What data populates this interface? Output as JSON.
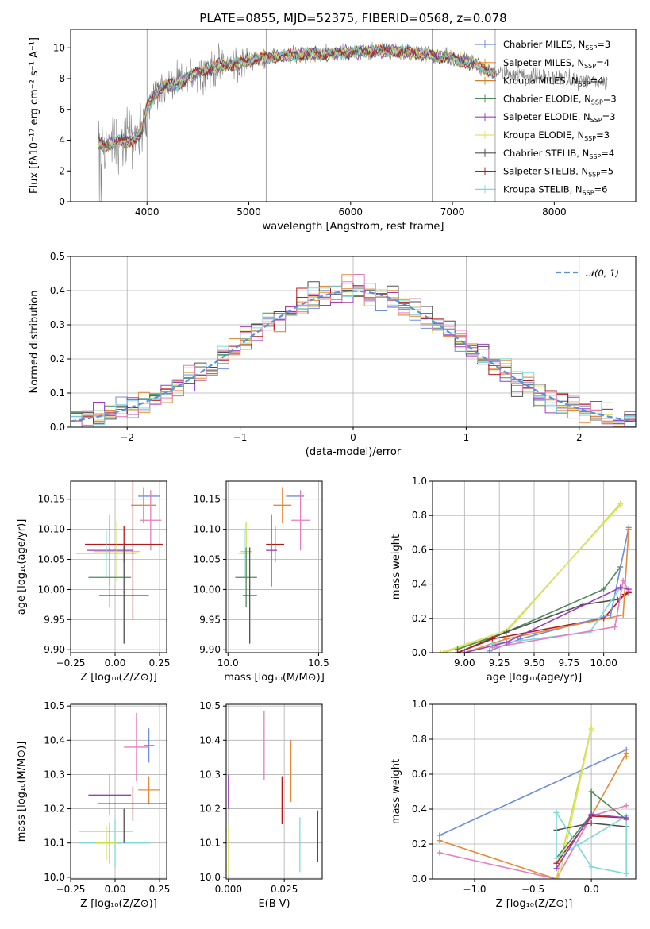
{
  "title": "PLATE=0855, MJD=52375, FIBERID=0568, z=0.078",
  "colors": {
    "Chabrier MILES": "#6f8fdc",
    "Salpeter MILES": "#e48b3a",
    "Kroupa MILES": "#d2822f",
    "Chabrier ELODIE": "#4f8a5c",
    "Salpeter ELODIE": "#9a3fbf",
    "Kroupa ELODIE": "#e0e070",
    "Chabrier STELIB": "#505050",
    "Salpeter STELIB": "#b01c1c",
    "Kroupa STELIB": "#7fd8d8",
    "pink": "#e37fbf",
    "lime": "#c8e040",
    "data": "#808080",
    "normal": "#5b8fd6"
  },
  "chart_data": [
    {
      "id": "spectrum",
      "type": "line",
      "title": "PLATE=0855, MJD=52375, FIBERID=0568, z=0.078",
      "xlabel": "wavelength [Angstrom, rest frame]",
      "ylabel": "Flux [fλ10⁻¹⁷ erg cm⁻² s⁻¹ A⁻¹]",
      "xlim": [
        3250,
        8800
      ],
      "ylim": [
        0,
        11.2
      ],
      "xticks": [
        4000,
        5000,
        6000,
        7000,
        8000
      ],
      "yticks": [
        0,
        2,
        4,
        6,
        8,
        10
      ],
      "legend_position": "top-right",
      "continuum": {
        "x": [
          3520,
          3600,
          3700,
          3800,
          3900,
          3950,
          4000,
          4100,
          4200,
          4300,
          4400,
          4500,
          4600,
          4700,
          4800,
          4900,
          5000,
          5200,
          5400,
          5600,
          5800,
          6000,
          6200,
          6400,
          6600,
          6800,
          7000,
          7200,
          7400
        ],
        "y": [
          3.8,
          3.6,
          4.0,
          3.9,
          4.2,
          4.5,
          6.2,
          7.2,
          7.6,
          7.6,
          8.1,
          8.4,
          8.6,
          8.8,
          8.9,
          9.0,
          9.2,
          9.4,
          9.5,
          9.6,
          9.6,
          9.7,
          9.8,
          9.8,
          9.7,
          9.5,
          9.3,
          9.0,
          8.4
        ]
      },
      "model_end": 7420,
      "data_end": 8520,
      "legend": [
        {
          "name": "Chabrier MILES",
          "sub": "SSP",
          "n": "3",
          "color": "#6f8fdc"
        },
        {
          "name": "Salpeter MILES",
          "sub": "SSP",
          "n": "4",
          "color": "#e48b3a"
        },
        {
          "name": "Kroupa MILES",
          "sub": "SSP",
          "n": "4",
          "color": "#d2822f"
        },
        {
          "name": "Chabrier ELODIE",
          "sub": "SSP",
          "n": "3",
          "color": "#4f8a5c"
        },
        {
          "name": "Salpeter ELODIE",
          "sub": "SSP",
          "n": "3",
          "color": "#9a3fbf"
        },
        {
          "name": "Kroupa ELODIE",
          "sub": "SSP",
          "n": "3",
          "color": "#e0e070"
        },
        {
          "name": "Chabrier STELIB",
          "sub": "SSP",
          "n": "4",
          "color": "#505050"
        },
        {
          "name": "Salpeter STELIB",
          "sub": "SSP",
          "n": "5",
          "color": "#b01c1c"
        },
        {
          "name": "Kroupa STELIB",
          "sub": "SSP",
          "n": "6",
          "color": "#7fd8d8"
        }
      ]
    },
    {
      "id": "residuals",
      "type": "line",
      "xlabel": "(data-model)/error",
      "ylabel": "Normed distribution",
      "xlim": [
        -2.5,
        2.5
      ],
      "ylim": [
        0,
        0.5
      ],
      "xticks": [
        -2,
        -1,
        0,
        1,
        2
      ],
      "yticks": [
        0.0,
        0.1,
        0.2,
        0.3,
        0.4,
        0.5
      ],
      "bin_width": 0.1,
      "legend": [
        {
          "name": "𝒩(0, 1)",
          "style": "dashed",
          "color": "#5b8fd6"
        }
      ],
      "legend_position": "top-right",
      "grid": true
    },
    {
      "id": "age-vs-z",
      "type": "scatter",
      "xlabel": "Z [log₁₀(Z/Z⊙)]",
      "ylabel": "age [log₁₀(age/yr)]",
      "xlim": [
        -0.25,
        0.29
      ],
      "ylim": [
        9.895,
        10.18
      ],
      "xticks": [
        -0.25,
        0.0,
        0.25
      ],
      "yticks": [
        9.9,
        9.95,
        10.0,
        10.05,
        10.1,
        10.15
      ],
      "grid": true,
      "points": [
        {
          "x": 0.19,
          "y": 10.155,
          "xerr": 0.06,
          "yerr": 0.0,
          "color": "#6f8fdc"
        },
        {
          "x": 0.16,
          "y": 10.14,
          "xerr": 0.07,
          "yerr": 0.03,
          "color": "#e48b3a"
        },
        {
          "x": 0.2,
          "y": 10.115,
          "xerr": 0.06,
          "yerr": 0.05,
          "color": "#e37fbf"
        },
        {
          "x": 0.05,
          "y": 10.075,
          "xerr": 0.22,
          "yerr": 0.03,
          "color": "#b01c1c"
        },
        {
          "x": -0.03,
          "y": 10.065,
          "xerr": 0.13,
          "yerr": 0.06,
          "color": "#9a3fbf"
        },
        {
          "x": 0.01,
          "y": 10.063,
          "xerr": 0.13,
          "yerr": 0.05,
          "color": "#c8e040"
        },
        {
          "x": -0.05,
          "y": 10.06,
          "xerr": 0.17,
          "yerr": 0.04,
          "color": "#7fd8d8"
        },
        {
          "x": -0.03,
          "y": 10.02,
          "xerr": 0.12,
          "yerr": 0.05,
          "color": "#4f8a5c"
        },
        {
          "x": 0.05,
          "y": 9.99,
          "xerr": 0.14,
          "yerr": 0.08,
          "color": "#505050"
        },
        {
          "x": 0.1,
          "y": 10.07,
          "xerr": 0.0,
          "yerr": 0.12,
          "color": "#b01c1c"
        }
      ]
    },
    {
      "id": "age-vs-mass",
      "type": "scatter",
      "xlabel": "mass [log₁₀(M/M⊙)]",
      "ylabel": "",
      "xlim": [
        9.99,
        10.52
      ],
      "ylim": [
        9.895,
        10.18
      ],
      "xticks": [
        10.0,
        10.5
      ],
      "yticks": [
        9.9,
        9.95,
        10.0,
        10.05,
        10.1,
        10.15
      ],
      "grid": true,
      "points": [
        {
          "x": 10.37,
          "y": 10.155,
          "xerr": 0.05,
          "yerr": 0.0,
          "color": "#6f8fdc"
        },
        {
          "x": 10.3,
          "y": 10.14,
          "xerr": 0.05,
          "yerr": 0.03,
          "color": "#e48b3a"
        },
        {
          "x": 10.4,
          "y": 10.115,
          "xerr": 0.05,
          "yerr": 0.05,
          "color": "#e37fbf"
        },
        {
          "x": 10.26,
          "y": 10.075,
          "xerr": 0.05,
          "yerr": 0.03,
          "color": "#b01c1c"
        },
        {
          "x": 10.24,
          "y": 10.065,
          "xerr": 0.03,
          "yerr": 0.06,
          "color": "#9a3fbf"
        },
        {
          "x": 10.1,
          "y": 10.063,
          "xerr": 0.03,
          "yerr": 0.05,
          "color": "#c8e040"
        },
        {
          "x": 10.09,
          "y": 10.06,
          "xerr": 0.03,
          "yerr": 0.04,
          "color": "#7fd8d8"
        },
        {
          "x": 10.1,
          "y": 10.02,
          "xerr": 0.06,
          "yerr": 0.05,
          "color": "#4f8a5c"
        },
        {
          "x": 10.12,
          "y": 9.99,
          "xerr": 0.04,
          "yerr": 0.08,
          "color": "#505050"
        }
      ]
    },
    {
      "id": "weight-vs-age",
      "type": "line",
      "xlabel": "age [log₁₀(age/yr)]",
      "ylabel": "mass weight",
      "xlim": [
        8.77,
        10.23
      ],
      "ylim": [
        0,
        1.0
      ],
      "xticks": [
        9.0,
        9.25,
        9.5,
        9.75,
        10.0
      ],
      "yticks": [
        0.0,
        0.2,
        0.4,
        0.6,
        0.8,
        1.0
      ],
      "grid": true,
      "series": [
        {
          "color": "#c8e040",
          "x": [
            8.85,
            9.3,
            10.12
          ],
          "y": [
            0.0,
            0.12,
            0.87
          ]
        },
        {
          "color": "#e0e070",
          "x": [
            8.83,
            9.3,
            10.12
          ],
          "y": [
            0.0,
            0.13,
            0.86
          ]
        },
        {
          "color": "#4f8a5c",
          "x": [
            8.95,
            9.3,
            10.0,
            10.12
          ],
          "y": [
            0.02,
            0.12,
            0.37,
            0.5
          ]
        },
        {
          "color": "#505050",
          "x": [
            8.95,
            9.3,
            9.85,
            10.1,
            10.18
          ],
          "y": [
            0.0,
            0.12,
            0.28,
            0.31,
            0.35
          ]
        },
        {
          "color": "#b01c1c",
          "x": [
            8.95,
            9.2,
            10.0,
            10.15,
            10.18
          ],
          "y": [
            0.0,
            0.08,
            0.2,
            0.34,
            0.35
          ]
        },
        {
          "color": "#6f8fdc",
          "x": [
            9.18,
            9.4,
            10.05,
            10.18
          ],
          "y": [
            0.01,
            0.08,
            0.22,
            0.73
          ]
        },
        {
          "color": "#e48b3a",
          "x": [
            9.0,
            9.3,
            10.14,
            10.18
          ],
          "y": [
            0.0,
            0.08,
            0.22,
            0.72
          ]
        },
        {
          "color": "#7fd8d8",
          "x": [
            9.2,
            9.9,
            10.12,
            10.18
          ],
          "y": [
            0.05,
            0.12,
            0.38,
            0.37
          ]
        },
        {
          "color": "#e37fbf",
          "x": [
            9.2,
            10.08,
            10.14,
            10.18
          ],
          "y": [
            0.03,
            0.15,
            0.42,
            0.36
          ]
        },
        {
          "color": "#9a3fbf",
          "x": [
            9.0,
            9.3,
            10.12,
            10.18
          ],
          "y": [
            0.0,
            0.06,
            0.38,
            0.37
          ]
        }
      ]
    },
    {
      "id": "mass-vs-z",
      "type": "scatter",
      "xlabel": "Z [log₁₀(Z/Z⊙)]",
      "ylabel": "mass [log₁₀(M/M⊙)]",
      "xlim": [
        -0.25,
        0.29
      ],
      "ylim": [
        9.995,
        10.505
      ],
      "xticks": [
        -0.25,
        0.0,
        0.25
      ],
      "yticks": [
        10.0,
        10.1,
        10.2,
        10.3,
        10.4,
        10.5
      ],
      "grid": true,
      "points": [
        {
          "x": 0.19,
          "y": 10.385,
          "xerr": 0.03,
          "yerr": 0.05,
          "color": "#6f8fdc"
        },
        {
          "x": 0.12,
          "y": 10.38,
          "xerr": 0.07,
          "yerr": 0.1,
          "color": "#e37fbf"
        },
        {
          "x": 0.19,
          "y": 10.255,
          "xerr": 0.06,
          "yerr": 0.04,
          "color": "#e48b3a"
        },
        {
          "x": -0.03,
          "y": 10.24,
          "xerr": 0.12,
          "yerr": 0.06,
          "color": "#9a3fbf"
        },
        {
          "x": 0.1,
          "y": 10.215,
          "xerr": 0.2,
          "yerr": 0.05,
          "color": "#b01c1c"
        },
        {
          "x": -0.05,
          "y": 10.135,
          "xerr": 0.15,
          "yerr": 0.0,
          "color": "#505050"
        },
        {
          "x": -0.03,
          "y": 10.1,
          "xerr": 0.06,
          "yerr": 0.06,
          "color": "#4f8a5c"
        },
        {
          "x": 0.0,
          "y": 10.1,
          "xerr": 0.2,
          "yerr": 0.07,
          "color": "#7fd8d8"
        },
        {
          "x": -0.05,
          "y": 10.1,
          "xerr": 0.06,
          "yerr": 0.05,
          "color": "#c8e040"
        },
        {
          "x": 0.05,
          "y": 10.15,
          "xerr": 0.0,
          "yerr": 0.05,
          "color": "#505050"
        }
      ]
    },
    {
      "id": "mass-vs-ebv",
      "type": "scatter",
      "xlabel": "E(B-V)",
      "ylabel": "",
      "xlim": [
        -0.001,
        0.042
      ],
      "ylim": [
        9.995,
        10.505
      ],
      "xticks": [
        0.0,
        0.025
      ],
      "yticks": [
        10.0,
        10.1,
        10.2,
        10.3,
        10.4,
        10.5
      ],
      "grid": true,
      "points": [
        {
          "x": 0.0,
          "y": 10.25,
          "xerr": 0.0,
          "yerr": 0.05,
          "color": "#9a3fbf"
        },
        {
          "x": 0.0,
          "y": 10.08,
          "xerr": 0.0,
          "yerr": 0.07,
          "color": "#e0e070"
        },
        {
          "x": 0.016,
          "y": 10.385,
          "xerr": 0.0,
          "yerr": 0.1,
          "color": "#e37fbf"
        },
        {
          "x": 0.028,
          "y": 10.31,
          "xerr": 0.0,
          "yerr": 0.09,
          "color": "#e48b3a"
        },
        {
          "x": 0.024,
          "y": 10.225,
          "xerr": 0.0,
          "yerr": 0.07,
          "color": "#b01c1c"
        },
        {
          "x": 0.032,
          "y": 10.095,
          "xerr": 0.0,
          "yerr": 0.08,
          "color": "#7fd8d8"
        },
        {
          "x": 0.04,
          "y": 10.12,
          "xerr": 0.0,
          "yerr": 0.075,
          "color": "#505050"
        }
      ]
    },
    {
      "id": "weight-vs-z",
      "type": "line",
      "xlabel": "Z [log₁₀(Z/Z⊙)]",
      "ylabel": "mass weight",
      "xlim": [
        -1.36,
        0.38
      ],
      "ylim": [
        0,
        1.0
      ],
      "xticks": [
        -1.0,
        -0.5,
        0.0
      ],
      "yticks": [
        0.0,
        0.2,
        0.4,
        0.6,
        0.8,
        1.0
      ],
      "grid": true,
      "series": [
        {
          "color": "#6f8fdc",
          "x": [
            -1.3,
            0.3
          ],
          "y": [
            0.25,
            0.74
          ]
        },
        {
          "color": "#e48b3a",
          "x": [
            -1.3,
            -0.3,
            0.3,
            0.3
          ],
          "y": [
            0.22,
            0.0,
            0.72,
            0.7
          ]
        },
        {
          "color": "#e37fbf",
          "x": [
            -1.3,
            -0.3,
            0.0,
            0.3
          ],
          "y": [
            0.15,
            0.0,
            0.36,
            0.42
          ]
        },
        {
          "color": "#c8e040",
          "x": [
            -0.3,
            0.0,
            0.0
          ],
          "y": [
            0.0,
            0.87,
            0.85
          ]
        },
        {
          "color": "#e0e070",
          "x": [
            -0.28,
            0.0
          ],
          "y": [
            0.0,
            0.86
          ]
        },
        {
          "color": "#4f8a5c",
          "x": [
            -0.3,
            0.0,
            0.0,
            0.3
          ],
          "y": [
            0.12,
            0.37,
            0.5,
            0.34
          ]
        },
        {
          "color": "#505050",
          "x": [
            -0.3,
            0.0,
            0.3
          ],
          "y": [
            0.28,
            0.32,
            0.3
          ]
        },
        {
          "color": "#b01c1c",
          "x": [
            -0.3,
            0.0,
            0.3
          ],
          "y": [
            0.09,
            0.36,
            0.35
          ]
        },
        {
          "color": "#7fd8d8",
          "x": [
            -0.3,
            0.0,
            0.3,
            0.3,
            -0.3,
            -0.3
          ],
          "y": [
            0.38,
            0.07,
            0.03,
            0.36,
            0.12,
            0.38
          ]
        },
        {
          "color": "#9a3fbf",
          "x": [
            -0.3,
            0.0,
            0.3
          ],
          "y": [
            0.06,
            0.37,
            0.35
          ]
        }
      ]
    }
  ]
}
